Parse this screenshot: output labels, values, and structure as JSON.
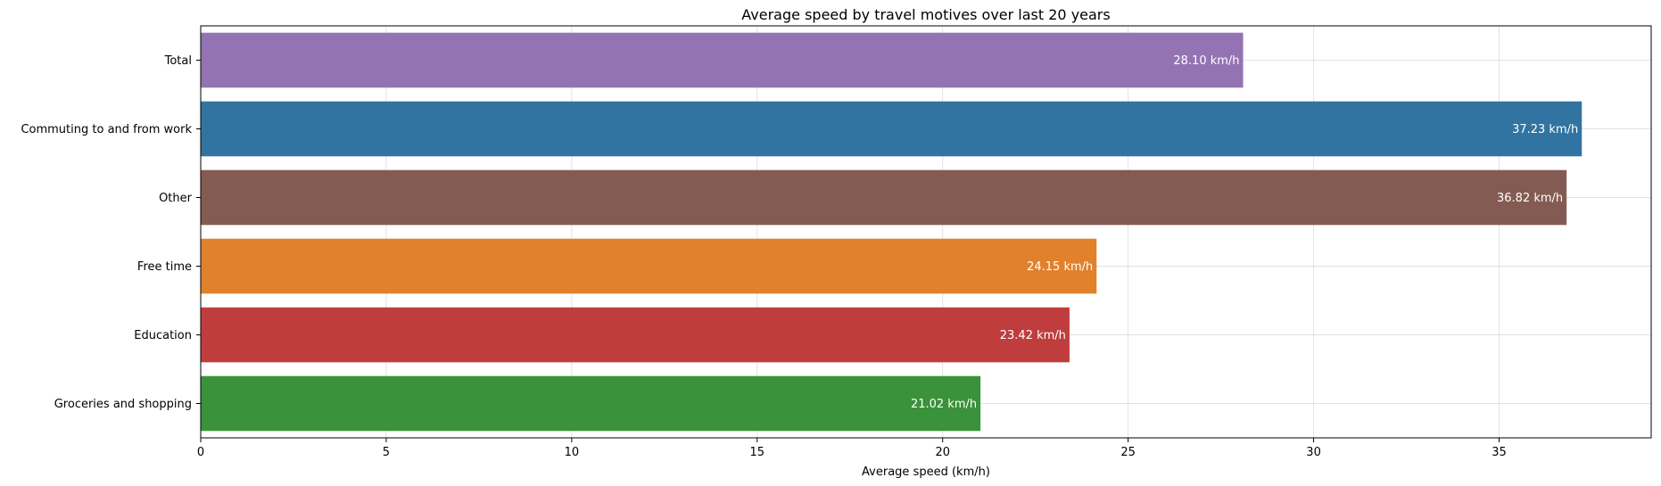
{
  "chart_data": {
    "type": "bar",
    "orientation": "horizontal",
    "title": "Average speed by travel motives over last 20 years",
    "xlabel": "Average speed (km/h)",
    "ylabel": "",
    "xlim": [
      0,
      39.1
    ],
    "xticks": [
      0,
      5,
      10,
      15,
      20,
      25,
      30,
      35
    ],
    "grid": true,
    "categories": [
      "Total",
      "Commuting to and from work",
      "Other",
      "Free time",
      "Education",
      "Groceries and shopping"
    ],
    "values": [
      28.1,
      37.23,
      36.82,
      24.15,
      23.42,
      21.02
    ],
    "value_labels": [
      "28.10 km/h",
      "37.23 km/h",
      "36.82 km/h",
      "24.15 km/h",
      "23.42 km/h",
      "21.02 km/h"
    ],
    "colors": [
      "#9373b1",
      "#3274a1",
      "#845b53",
      "#e1812c",
      "#c03d3e",
      "#3a923a"
    ]
  }
}
